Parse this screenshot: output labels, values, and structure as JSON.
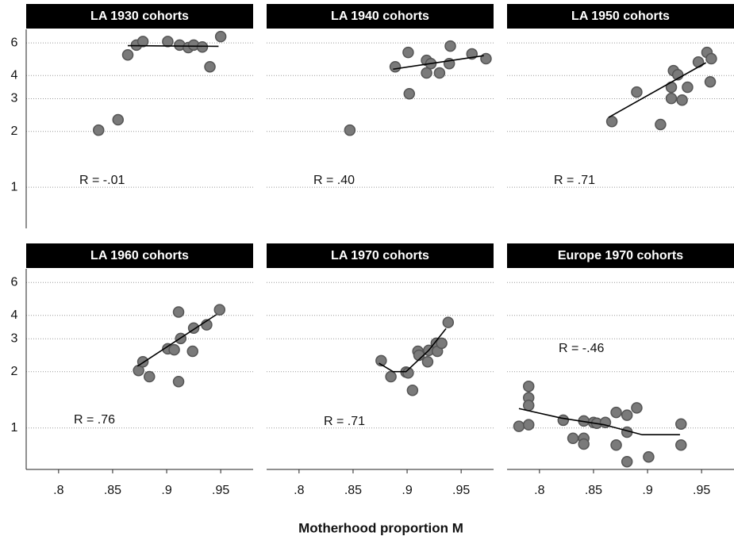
{
  "x_axis_label": "Motherhood proportion M",
  "chart_data": [
    {
      "type": "scatter",
      "title": "LA 1930 cohorts",
      "annotation": "R = -.01",
      "log_y": true,
      "xlim": [
        0.77,
        0.98
      ],
      "ylim": [
        0.6,
        7.1
      ],
      "yticks": [
        1,
        2,
        3,
        4,
        6
      ],
      "grid": true,
      "color": "#7a7a7a",
      "x": [
        0.837,
        0.855,
        0.864,
        0.872,
        0.878,
        0.901,
        0.912,
        0.92,
        0.925,
        0.933,
        0.94,
        0.95
      ],
      "y": [
        2.03,
        2.31,
        5.17,
        5.84,
        6.1,
        6.1,
        5.84,
        5.66,
        5.84,
        5.7,
        4.46,
        6.49
      ],
      "trend_x": [
        0.864,
        0.948
      ],
      "trend_y": [
        5.8,
        5.75
      ]
    },
    {
      "type": "scatter",
      "title": "LA 1940 cohorts",
      "annotation": "R = .40",
      "log_y": true,
      "xlim": [
        0.77,
        0.98
      ],
      "ylim": [
        0.6,
        7.1
      ],
      "yticks": [
        1,
        2,
        3,
        4,
        6
      ],
      "grid": true,
      "color": "#7a7a7a",
      "x": [
        0.847,
        0.889,
        0.901,
        0.902,
        0.918,
        0.918,
        0.922,
        0.93,
        0.939,
        0.94,
        0.96,
        0.973
      ],
      "y": [
        2.03,
        4.46,
        5.33,
        3.19,
        4.83,
        4.13,
        4.64,
        4.13,
        4.64,
        5.77,
        5.23,
        4.93
      ],
      "trend_x": [
        0.887,
        0.971
      ],
      "trend_y": [
        4.33,
        5.12
      ]
    },
    {
      "type": "scatter",
      "title": "LA 1950 cohorts",
      "annotation": "R = .71",
      "log_y": true,
      "xlim": [
        0.77,
        0.98
      ],
      "ylim": [
        0.6,
        7.1
      ],
      "yticks": [
        1,
        2,
        3,
        4,
        6
      ],
      "grid": true,
      "color": "#7a7a7a",
      "x": [
        0.867,
        0.89,
        0.912,
        0.922,
        0.922,
        0.924,
        0.928,
        0.932,
        0.937,
        0.947,
        0.955,
        0.959,
        0.958
      ],
      "y": [
        2.26,
        3.26,
        2.18,
        3.01,
        3.46,
        4.25,
        4.04,
        2.95,
        3.46,
        4.73,
        5.33,
        4.93,
        3.7
      ],
      "trend_x": [
        0.864,
        0.954
      ],
      "trend_y": [
        2.38,
        4.69
      ]
    },
    {
      "type": "scatter",
      "title": "LA 1960 cohorts",
      "annotation": "R = .76",
      "log_y": true,
      "xlim": [
        0.77,
        0.98
      ],
      "ylim": [
        0.6,
        7.1
      ],
      "yticks": [
        1,
        2,
        3,
        4,
        6
      ],
      "grid": true,
      "color": "#7a7a7a",
      "xticks": [
        {
          "value": 0.8,
          "label": ".8"
        },
        {
          "value": 0.85,
          "label": ".85"
        },
        {
          "value": 0.9,
          "label": ".9"
        },
        {
          "value": 0.95,
          "label": ".95"
        }
      ],
      "x": [
        0.874,
        0.878,
        0.884,
        0.901,
        0.907,
        0.911,
        0.911,
        0.913,
        0.924,
        0.925,
        0.937,
        0.949
      ],
      "y": [
        2.03,
        2.26,
        1.88,
        2.65,
        2.62,
        4.17,
        1.77,
        3.01,
        2.57,
        3.42,
        3.56,
        4.29
      ],
      "trend_x": [
        0.873,
        0.946
      ],
      "trend_y": [
        2.14,
        4.04
      ]
    },
    {
      "type": "scatter",
      "title": "LA 1970 cohorts",
      "annotation": "R = .71",
      "log_y": true,
      "xlim": [
        0.77,
        0.98
      ],
      "ylim": [
        0.6,
        7.1
      ],
      "yticks": [
        1,
        2,
        3,
        4,
        6
      ],
      "grid": true,
      "color": "#7a7a7a",
      "xticks": [
        {
          "value": 0.8,
          "label": ".8"
        },
        {
          "value": 0.85,
          "label": ".85"
        },
        {
          "value": 0.9,
          "label": ".9"
        },
        {
          "value": 0.95,
          "label": ".95"
        }
      ],
      "x": [
        0.876,
        0.885,
        0.899,
        0.901,
        0.905,
        0.91,
        0.911,
        0.919,
        0.92,
        0.927,
        0.928,
        0.932,
        0.938
      ],
      "y": [
        2.29,
        1.88,
        1.99,
        1.97,
        1.59,
        2.57,
        2.45,
        2.26,
        2.6,
        2.84,
        2.57,
        2.84,
        3.67
      ],
      "trend_x": [
        0.874,
        0.887,
        0.899,
        0.92,
        0.936
      ],
      "trend_y": [
        2.22,
        2.0,
        2.0,
        2.6,
        3.4
      ]
    },
    {
      "type": "scatter",
      "title": "Europe 1970 cohorts",
      "annotation": "R = -.46",
      "log_y": true,
      "xlim": [
        0.77,
        0.98
      ],
      "ylim": [
        0.6,
        7.1
      ],
      "yticks": [
        1,
        2,
        3,
        4,
        6
      ],
      "grid": true,
      "color": "#7a7a7a",
      "xticks": [
        {
          "value": 0.8,
          "label": ".8"
        },
        {
          "value": 0.85,
          "label": ".85"
        },
        {
          "value": 0.9,
          "label": ".9"
        },
        {
          "value": 0.95,
          "label": ".95"
        }
      ],
      "x": [
        0.781,
        0.79,
        0.79,
        0.79,
        0.79,
        0.822,
        0.831,
        0.841,
        0.841,
        0.841,
        0.85,
        0.853,
        0.861,
        0.871,
        0.871,
        0.881,
        0.881,
        0.881,
        0.89,
        0.901,
        0.931,
        0.931
      ],
      "y": [
        1.02,
        1.67,
        1.45,
        1.32,
        1.04,
        1.1,
        0.88,
        1.09,
        0.88,
        0.82,
        1.07,
        1.06,
        1.07,
        1.21,
        0.81,
        1.17,
        0.95,
        0.66,
        1.28,
        0.7,
        1.05,
        0.81
      ],
      "trend_x": [
        0.781,
        0.82,
        0.86,
        0.895,
        0.93
      ],
      "trend_y": [
        1.27,
        1.13,
        1.04,
        0.92,
        0.92
      ]
    }
  ]
}
